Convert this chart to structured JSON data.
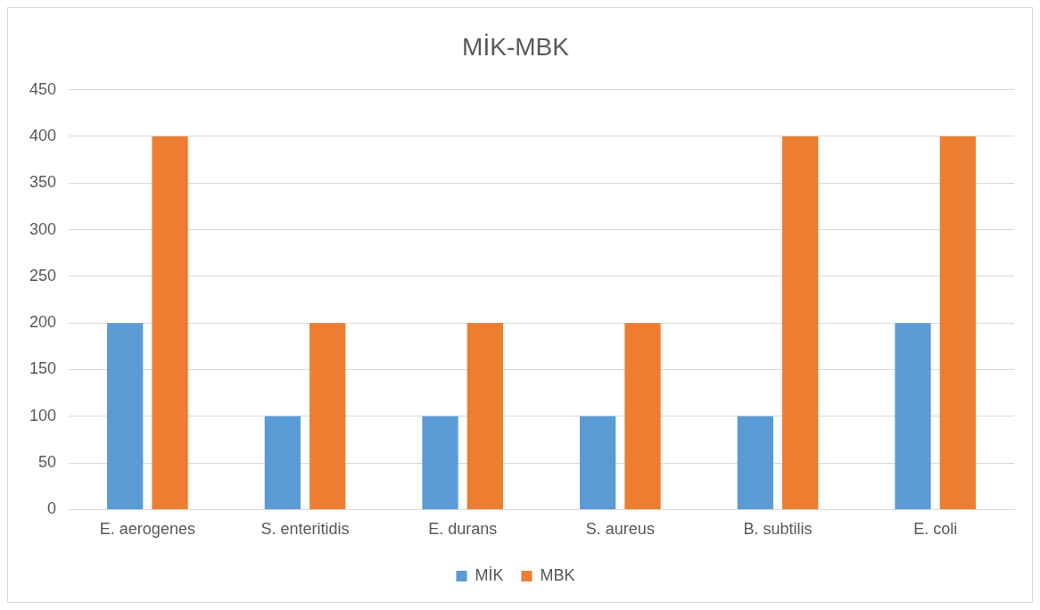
{
  "chart_data": {
    "type": "bar",
    "title": "MİK-MBK",
    "categories": [
      "E. aerogenes",
      "S. enteritidis",
      "E. durans",
      "S. aureus",
      "B. subtilis",
      "E. coli"
    ],
    "series": [
      {
        "name": "MİK",
        "color": "#5b9bd5",
        "values": [
          200,
          100,
          100,
          100,
          100,
          200
        ]
      },
      {
        "name": "MBK",
        "color": "#ed7d31",
        "values": [
          400,
          200,
          200,
          200,
          400,
          400
        ]
      }
    ],
    "ylim": [
      0,
      450
    ],
    "yticks": [
      0,
      50,
      100,
      150,
      200,
      250,
      300,
      350,
      400,
      450
    ],
    "grid": "y",
    "legend": "bottom"
  }
}
